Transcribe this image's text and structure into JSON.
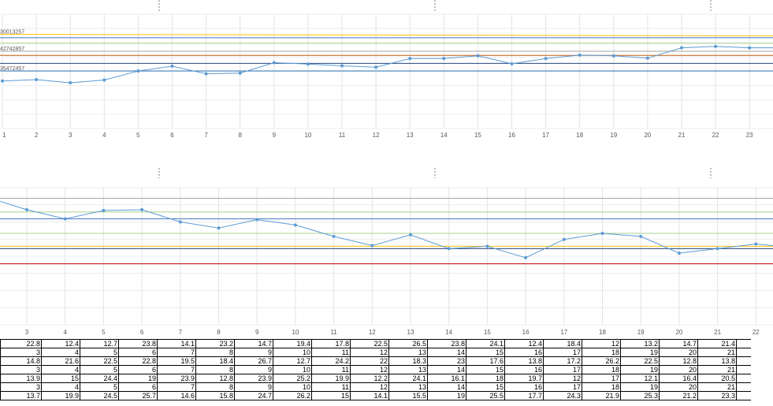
{
  "chart_data": [
    {
      "type": "line",
      "title": "",
      "xlabel": "",
      "ylabel": "",
      "x": [
        1,
        2,
        3,
        4,
        5,
        6,
        7,
        8,
        9,
        10,
        11,
        12,
        13,
        14,
        15,
        16,
        17,
        18,
        19,
        20,
        21,
        22,
        23
      ],
      "ylim": [
        0,
        33
      ],
      "series": [
        {
          "values": [
            13.7,
            14.1,
            13.2,
            14.0,
            16.6,
            18.0,
            15.8,
            16.0,
            19.0,
            18.6,
            18.1,
            17.7,
            20.2,
            20.2,
            21.0,
            18.7,
            20.2,
            21.2,
            21.0,
            20.3,
            23.3,
            23.7,
            23.3
          ],
          "color": "#5B9BD5"
        }
      ],
      "reference_lines": [
        {
          "label": "30013257",
          "value": 27.2,
          "color": "#FFC000"
        },
        {
          "value": 26.2,
          "color": "#4472C4"
        },
        {
          "value": 24.6,
          "color": "#A9D18E"
        },
        {
          "label": "42742857",
          "value": 22.3,
          "color": "#A5A5A5"
        },
        {
          "value": 21.1,
          "color": "#C55A11"
        },
        {
          "value": 18.8,
          "color": "#264478"
        },
        {
          "label": "35472457",
          "value": 16.6,
          "color": "#2E75B6"
        }
      ],
      "grid": true
    },
    {
      "type": "line",
      "title": "",
      "xlabel": "",
      "ylabel": "",
      "x": [
        3,
        4,
        5,
        6,
        7,
        8,
        9,
        10,
        11,
        12,
        13,
        14,
        15,
        16,
        17,
        18,
        19,
        20,
        21,
        22
      ],
      "ylim": [
        0,
        18
      ],
      "series": [
        {
          "values": [
            15.1,
            13.9,
            15.0,
            15.1,
            13.5,
            12.7,
            13.8,
            13.1,
            11.6,
            10.4,
            11.8,
            10.0,
            10.3,
            8.8,
            11.2,
            12.0,
            11.6,
            9.4,
            10.0,
            10.6
          ],
          "color": "#5B9BD5"
        }
      ],
      "reference_lines": [
        {
          "value": 16.6,
          "color": "#A5A5A5"
        },
        {
          "value": 14.8,
          "color": "#A9D18E"
        },
        {
          "value": 13.9,
          "color": "#4472C4"
        },
        {
          "value": 12.0,
          "color": "#A9D18E"
        },
        {
          "value": 10.3,
          "color": "#FFC000"
        },
        {
          "value": 10.0,
          "color": "#264478"
        },
        {
          "value": 8.0,
          "color": "#C00000"
        }
      ],
      "grid": true
    }
  ],
  "table": {
    "rows": [
      [
        "22.8",
        "12.4",
        "12.7",
        "23.8",
        "14.1",
        "23.2",
        "14.7",
        "19.4",
        "17.8",
        "22.5",
        "26.5",
        "23.8",
        "24.1",
        "12.4",
        "18.4",
        "12",
        "13.2",
        "14.7",
        "21.4"
      ],
      [
        "3",
        "4",
        "5",
        "6",
        "7",
        "8",
        "9",
        "10",
        "11",
        "12",
        "13",
        "14",
        "15",
        "16",
        "17",
        "18",
        "19",
        "20",
        "21"
      ],
      [
        "14.8",
        "21.6",
        "22.5",
        "22.8",
        "19.5",
        "18.4",
        "26.7",
        "12.7",
        "24.2",
        "22",
        "18.3",
        "23",
        "17.6",
        "13.8",
        "17.2",
        "26.2",
        "22.5",
        "12.8",
        "13.8"
      ],
      [
        "3",
        "4",
        "5",
        "6",
        "7",
        "8",
        "9",
        "10",
        "11",
        "12",
        "13",
        "14",
        "15",
        "16",
        "17",
        "18",
        "19",
        "20",
        "21"
      ],
      [
        "13.9",
        "15",
        "24.4",
        "19",
        "23.9",
        "12.8",
        "23.9",
        "25.2",
        "19.9",
        "12.2",
        "24.1",
        "16.1",
        "18",
        "19.7",
        "12",
        "17",
        "12.1",
        "16.4",
        "20.5"
      ],
      [
        "3",
        "4",
        "5",
        "6",
        "7",
        "8",
        "9",
        "10",
        "11",
        "12",
        "13",
        "14",
        "15",
        "16",
        "17",
        "18",
        "19",
        "20",
        "21"
      ],
      [
        "13.7",
        "19.9",
        "24.5",
        "25.7",
        "14.6",
        "15.8",
        "24.7",
        "26.2",
        "15",
        "14.1",
        "15.5",
        "19",
        "25.5",
        "17.7",
        "24.3",
        "21.9",
        "25.3",
        "21.2",
        "23.3"
      ]
    ]
  }
}
